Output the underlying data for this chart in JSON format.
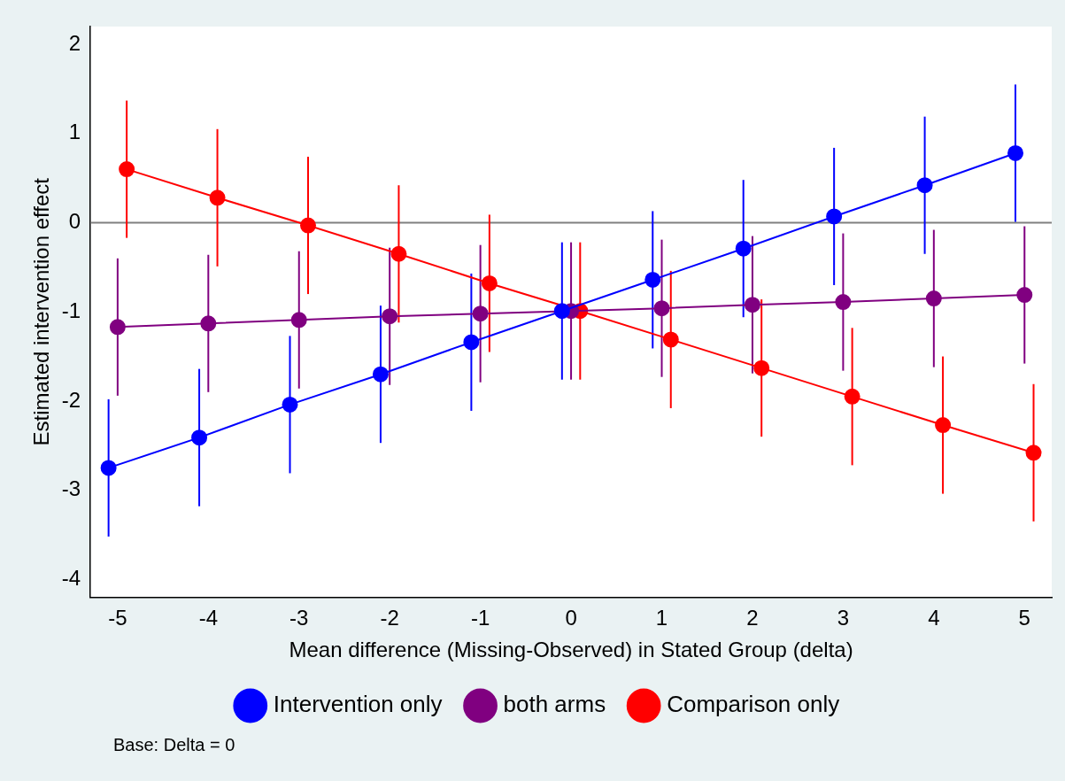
{
  "chart_data": {
    "type": "line",
    "xlabel": "Mean difference (Missing-Observed) in Stated Group (delta)",
    "ylabel": "Estimated intervention effect",
    "xlim": [
      -5.3,
      5.3
    ],
    "ylim": [
      -4.2,
      2.2
    ],
    "xticks": [
      -5,
      -4,
      -3,
      -2,
      -1,
      0,
      1,
      2,
      3,
      4,
      5
    ],
    "yticks": [
      -4,
      -3,
      -2,
      -1,
      0,
      1,
      2
    ],
    "marker": "circle",
    "legend": "bottom",
    "series": [
      {
        "name": "Intervention only",
        "color": "#0000ff",
        "x": [
          -5.1,
          -4.1,
          -3.1,
          -2.1,
          -1.1,
          -0.1,
          0.9,
          1.9,
          2.9,
          3.9,
          4.9
        ],
        "values": [
          -2.75,
          -2.41,
          -2.04,
          -1.7,
          -1.34,
          -0.99,
          -0.64,
          -0.29,
          0.07,
          0.42,
          0.78
        ],
        "errors": [
          0.77,
          0.77,
          0.77,
          0.77,
          0.77,
          0.77,
          0.77,
          0.77,
          0.77,
          0.77,
          0.77
        ]
      },
      {
        "name": "both arms",
        "color": "#800080",
        "x": [
          -5,
          -4,
          -3,
          -2,
          -1,
          0,
          1,
          2,
          3,
          4,
          5
        ],
        "values": [
          -1.17,
          -1.13,
          -1.09,
          -1.05,
          -1.02,
          -0.99,
          -0.96,
          -0.92,
          -0.89,
          -0.85,
          -0.81
        ],
        "errors": [
          0.77,
          0.77,
          0.77,
          0.77,
          0.77,
          0.77,
          0.77,
          0.77,
          0.77,
          0.77,
          0.77
        ]
      },
      {
        "name": "Comparison only",
        "color": "#ff0000",
        "x": [
          -4.9,
          -3.9,
          -2.9,
          -1.9,
          -0.9,
          0.1,
          1.1,
          2.1,
          3.1,
          4.1,
          5.1
        ],
        "values": [
          0.6,
          0.28,
          -0.03,
          -0.35,
          -0.68,
          -0.99,
          -1.31,
          -1.63,
          -1.95,
          -2.27,
          -2.58
        ],
        "errors": [
          0.77,
          0.77,
          0.77,
          0.77,
          0.77,
          0.77,
          0.77,
          0.77,
          0.77,
          0.77,
          0.77
        ]
      }
    ],
    "ref_lines": [
      {
        "axis": "y",
        "value": 0,
        "color": "#808080"
      }
    ],
    "annotations": [
      "Base: Delta = 0"
    ]
  }
}
